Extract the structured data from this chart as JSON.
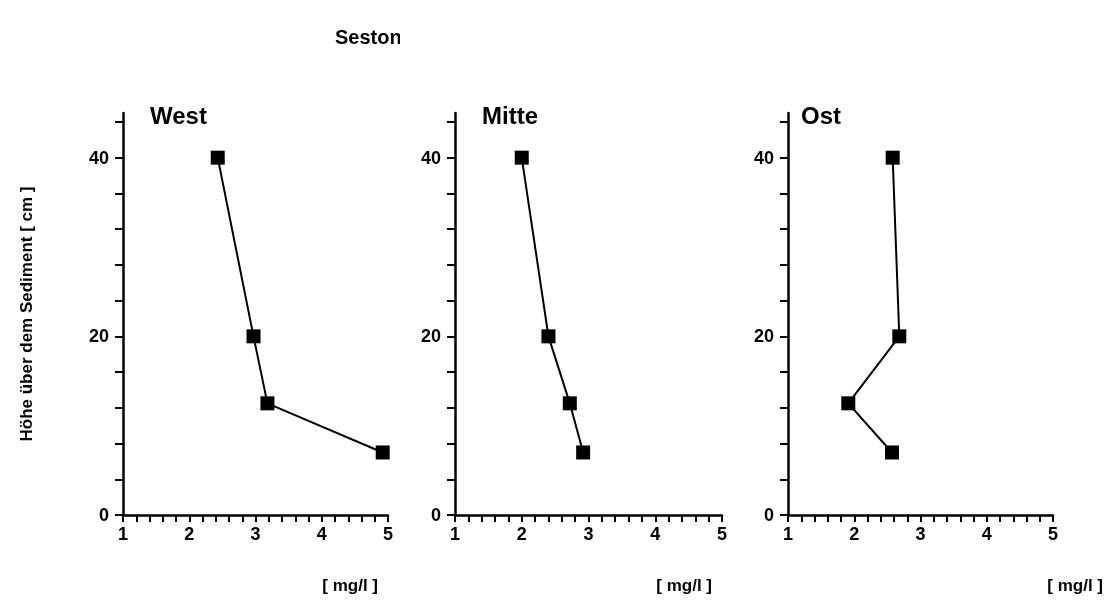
{
  "chart_data": [
    {
      "type": "line",
      "title": "Seston",
      "subtitle": "West",
      "xlabel": "[ mg/l ]",
      "ylabel": "Höhe über dem Sediment [ cm ]",
      "x": [
        2.43,
        2.97,
        3.18,
        4.92
      ],
      "values": [
        40,
        20,
        12.5,
        7
      ],
      "color": "#000000",
      "marker": "square",
      "line_style": "solid",
      "grid": false,
      "xlim": [
        1,
        5
      ],
      "xticks": [
        1,
        {
          "value": 1.2,
          "label": null
        },
        {
          "value": 1.4,
          "label": null
        },
        {
          "value": 1.6,
          "label": null
        },
        {
          "value": 1.8,
          "label": null
        },
        2,
        {
          "value": 2.2,
          "label": null
        },
        {
          "value": 2.4,
          "label": null
        },
        {
          "value": 2.6,
          "label": null
        },
        {
          "value": 2.8,
          "label": null
        },
        3,
        {
          "value": 3.2,
          "label": null
        },
        {
          "value": 3.4,
          "label": null
        },
        {
          "value": 3.6,
          "label": null
        },
        {
          "value": 3.8,
          "label": null
        },
        4,
        {
          "value": 4.2,
          "label": null
        },
        {
          "value": 4.4,
          "label": null
        },
        {
          "value": 4.6,
          "label": null
        },
        {
          "value": 4.8,
          "label": null
        },
        5
      ],
      "ylim": [
        0,
        45
      ],
      "yticks": [
        0,
        {
          "value": 4,
          "label": null
        },
        {
          "value": 8,
          "label": null
        },
        {
          "value": 12,
          "label": null
        },
        {
          "value": 16,
          "label": null
        },
        20,
        {
          "value": 24,
          "label": null
        },
        {
          "value": 28,
          "label": null
        },
        {
          "value": 32,
          "label": null
        },
        {
          "value": 36,
          "label": null
        },
        40,
        {
          "value": 44,
          "label": null
        }
      ]
    },
    {
      "type": "line",
      "subtitle": "Mitte",
      "xlabel": "[ mg/l ]",
      "x": [
        2.0,
        2.4,
        2.72,
        2.92
      ],
      "values": [
        40,
        20,
        12.5,
        7
      ],
      "color": "#000000",
      "marker": "square",
      "line_style": "solid",
      "grid": false,
      "xlim": [
        1,
        5
      ],
      "xticks": [
        1,
        {
          "value": 1.2,
          "label": null
        },
        {
          "value": 1.4,
          "label": null
        },
        {
          "value": 1.6,
          "label": null
        },
        {
          "value": 1.8,
          "label": null
        },
        2,
        {
          "value": 2.2,
          "label": null
        },
        {
          "value": 2.4,
          "label": null
        },
        {
          "value": 2.6,
          "label": null
        },
        {
          "value": 2.8,
          "label": null
        },
        3,
        {
          "value": 3.2,
          "label": null
        },
        {
          "value": 3.4,
          "label": null
        },
        {
          "value": 3.6,
          "label": null
        },
        {
          "value": 3.8,
          "label": null
        },
        4,
        {
          "value": 4.2,
          "label": null
        },
        {
          "value": 4.4,
          "label": null
        },
        {
          "value": 4.6,
          "label": null
        },
        {
          "value": 4.8,
          "label": null
        },
        5
      ],
      "ylim": [
        0,
        45
      ],
      "yticks": [
        0,
        {
          "value": 4,
          "label": null
        },
        {
          "value": 8,
          "label": null
        },
        {
          "value": 12,
          "label": null
        },
        {
          "value": 16,
          "label": null
        },
        20,
        {
          "value": 24,
          "label": null
        },
        {
          "value": 28,
          "label": null
        },
        {
          "value": 32,
          "label": null
        },
        {
          "value": 36,
          "label": null
        },
        40,
        {
          "value": 44,
          "label": null
        }
      ]
    },
    {
      "type": "line",
      "subtitle": "Ost",
      "xlabel": "[ mg/l ]",
      "x": [
        2.58,
        2.68,
        1.91,
        2.57
      ],
      "values": [
        40,
        20,
        12.5,
        7
      ],
      "color": "#000000",
      "marker": "square",
      "line_style": "solid",
      "grid": false,
      "xlim": [
        1,
        5
      ],
      "xticks": [
        1,
        {
          "value": 1.2,
          "label": null
        },
        {
          "value": 1.4,
          "label": null
        },
        {
          "value": 1.6,
          "label": null
        },
        {
          "value": 1.8,
          "label": null
        },
        2,
        {
          "value": 2.2,
          "label": null
        },
        {
          "value": 2.4,
          "label": null
        },
        {
          "value": 2.6,
          "label": null
        },
        {
          "value": 2.8,
          "label": null
        },
        3,
        {
          "value": 3.2,
          "label": null
        },
        {
          "value": 3.4,
          "label": null
        },
        {
          "value": 3.6,
          "label": null
        },
        {
          "value": 3.8,
          "label": null
        },
        4,
        {
          "value": 4.2,
          "label": null
        },
        {
          "value": 4.4,
          "label": null
        },
        {
          "value": 4.6,
          "label": null
        },
        {
          "value": 4.8,
          "label": null
        },
        5
      ],
      "ylim": [
        0,
        45
      ],
      "yticks": [
        0,
        {
          "value": 4,
          "label": null
        },
        {
          "value": 8,
          "label": null
        },
        {
          "value": 12,
          "label": null
        },
        {
          "value": 16,
          "label": null
        },
        20,
        {
          "value": 24,
          "label": null
        },
        {
          "value": 28,
          "label": null
        },
        {
          "value": 32,
          "label": null
        },
        {
          "value": 36,
          "label": null
        },
        40,
        {
          "value": 44,
          "label": null
        }
      ]
    }
  ]
}
